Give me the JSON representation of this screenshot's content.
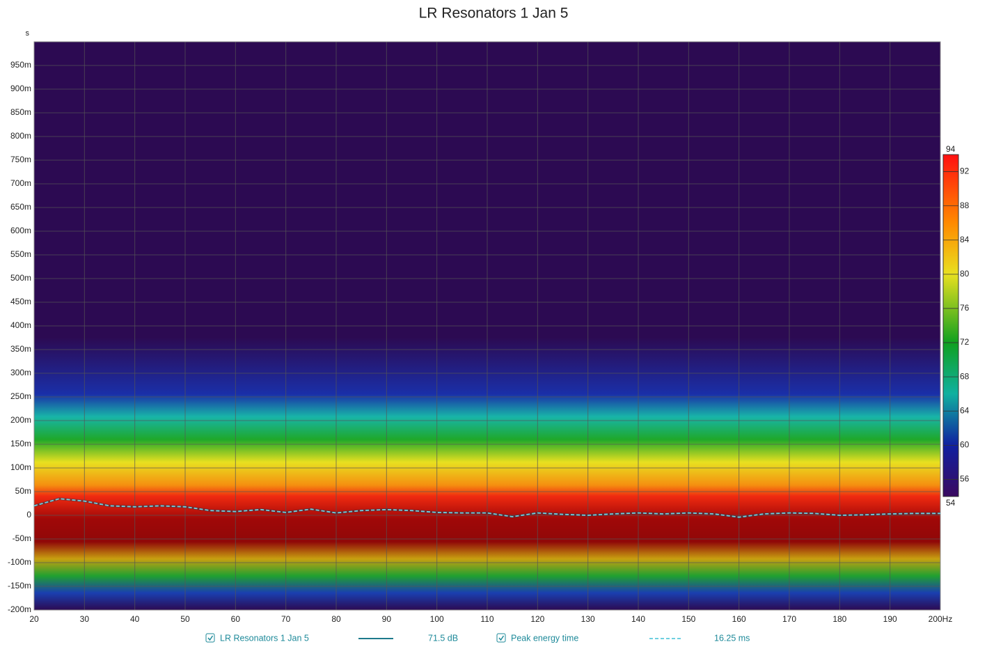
{
  "chart_data": {
    "type": "spectrogram",
    "title": "LR Resonators 1 Jan 5",
    "y_unit": "s",
    "xlim": [
      20,
      200
    ],
    "xticks": [
      20,
      30,
      40,
      50,
      60,
      70,
      80,
      90,
      100,
      110,
      120,
      130,
      140,
      150,
      160,
      170,
      180,
      190,
      {
        "value": 200,
        "label": "200Hz"
      }
    ],
    "ylim": [
      -0.2,
      1.0
    ],
    "yticks": [
      {
        "value": -0.2,
        "label": "-200m"
      },
      {
        "value": -0.15,
        "label": "-150m"
      },
      {
        "value": -0.1,
        "label": "-100m"
      },
      {
        "value": -0.05,
        "label": "-50m"
      },
      0,
      {
        "value": 0.05,
        "label": "50m"
      },
      {
        "value": 0.1,
        "label": "100m"
      },
      {
        "value": 0.15,
        "label": "150m"
      },
      {
        "value": 0.2,
        "label": "200m"
      },
      {
        "value": 0.25,
        "label": "250m"
      },
      {
        "value": 0.3,
        "label": "300m"
      },
      {
        "value": 0.35,
        "label": "350m"
      },
      {
        "value": 0.4,
        "label": "400m"
      },
      {
        "value": 0.45,
        "label": "450m"
      },
      {
        "value": 0.5,
        "label": "500m"
      },
      {
        "value": 0.55,
        "label": "550m"
      },
      {
        "value": 0.6,
        "label": "600m"
      },
      {
        "value": 0.65,
        "label": "650m"
      },
      {
        "value": 0.7,
        "label": "700m"
      },
      {
        "value": 0.75,
        "label": "750m"
      },
      {
        "value": 0.8,
        "label": "800m"
      },
      {
        "value": 0.85,
        "label": "850m"
      },
      {
        "value": 0.9,
        "label": "900m"
      },
      {
        "value": 0.95,
        "label": "950m"
      }
    ],
    "grid": true,
    "colorbar": {
      "lim": [
        54,
        94
      ],
      "ticks": [
        56,
        60,
        64,
        68,
        72,
        76,
        80,
        84,
        88,
        92
      ]
    },
    "series": [
      {
        "name": "Peak energy time",
        "color": "#6fd0e0",
        "x": [
          20,
          25,
          30,
          35,
          40,
          45,
          50,
          55,
          60,
          65,
          70,
          75,
          80,
          85,
          90,
          95,
          100,
          105,
          110,
          115,
          120,
          125,
          130,
          135,
          140,
          145,
          150,
          155,
          160,
          165,
          170,
          175,
          180,
          185,
          190,
          195,
          200
        ],
        "values": [
          0.02,
          0.035,
          0.03,
          0.02,
          0.018,
          0.02,
          0.018,
          0.01,
          0.008,
          0.012,
          0.006,
          0.013,
          0.005,
          0.01,
          0.012,
          0.01,
          0.006,
          0.005,
          0.005,
          -0.003,
          0.005,
          0.002,
          0.0,
          0.003,
          0.005,
          0.003,
          0.005,
          0.003,
          -0.004,
          0.003,
          0.005,
          0.004,
          0.0,
          0.001,
          0.003,
          0.004,
          0.004
        ]
      }
    ],
    "legend": [
      {
        "name": "LR Resonators 1 Jan 5",
        "readout": "71.5 dB",
        "color": "#1d7a8c"
      },
      {
        "name": "Peak energy time",
        "readout": "16.25 ms",
        "color": "#6fd0e0"
      }
    ]
  }
}
